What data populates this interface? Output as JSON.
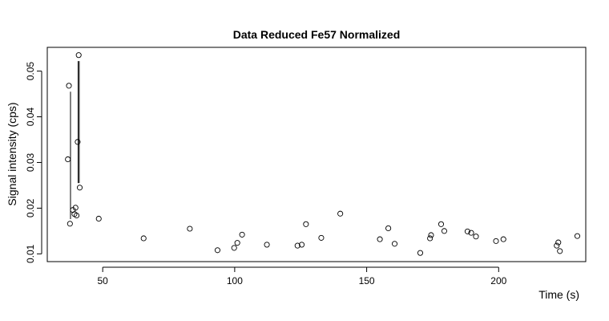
{
  "chart_data": {
    "type": "scatter",
    "title": "Data Reduced Fe57 Normalized",
    "xlabel": "Time (s)",
    "ylabel": "Signal intensity (cps)",
    "xlim": [
      29,
      233
    ],
    "ylim": [
      0.0083,
      0.0552
    ],
    "x_ticks": [
      50,
      100,
      150,
      200
    ],
    "x_tick_labels": [
      "50",
      "100",
      "150",
      "200"
    ],
    "y_ticks": [
      0.01,
      0.02,
      0.03,
      0.04,
      0.05
    ],
    "y_tick_labels": [
      "0.01",
      "0.02",
      "0.03",
      "0.04",
      "0.05"
    ],
    "grid": false,
    "points": [
      {
        "x": 36.8,
        "y": 0.0307
      },
      {
        "x": 37.2,
        "y": 0.0468
      },
      {
        "x": 37.6,
        "y": 0.0166
      },
      {
        "x": 38.7,
        "y": 0.0196
      },
      {
        "x": 39.3,
        "y": 0.0187
      },
      {
        "x": 39.7,
        "y": 0.0201
      },
      {
        "x": 40.1,
        "y": 0.0184
      },
      {
        "x": 40.5,
        "y": 0.0345
      },
      {
        "x": 40.9,
        "y": 0.0535
      },
      {
        "x": 41.3,
        "y": 0.0245
      },
      {
        "x": 48.5,
        "y": 0.0177
      },
      {
        "x": 65.5,
        "y": 0.0134
      },
      {
        "x": 83.0,
        "y": 0.0155
      },
      {
        "x": 93.5,
        "y": 0.0108
      },
      {
        "x": 99.8,
        "y": 0.0113
      },
      {
        "x": 101.0,
        "y": 0.0124
      },
      {
        "x": 102.8,
        "y": 0.0142
      },
      {
        "x": 112.2,
        "y": 0.012
      },
      {
        "x": 123.8,
        "y": 0.0118
      },
      {
        "x": 125.4,
        "y": 0.012
      },
      {
        "x": 127.0,
        "y": 0.0165
      },
      {
        "x": 132.8,
        "y": 0.0135
      },
      {
        "x": 140.0,
        "y": 0.0188
      },
      {
        "x": 155.0,
        "y": 0.0132
      },
      {
        "x": 158.2,
        "y": 0.0156
      },
      {
        "x": 160.6,
        "y": 0.0122
      },
      {
        "x": 170.3,
        "y": 0.0102
      },
      {
        "x": 174.0,
        "y": 0.0134
      },
      {
        "x": 174.4,
        "y": 0.0141
      },
      {
        "x": 178.2,
        "y": 0.0165
      },
      {
        "x": 179.4,
        "y": 0.015
      },
      {
        "x": 188.2,
        "y": 0.0149
      },
      {
        "x": 189.6,
        "y": 0.0146
      },
      {
        "x": 191.4,
        "y": 0.0138
      },
      {
        "x": 199.0,
        "y": 0.0128
      },
      {
        "x": 201.8,
        "y": 0.0132
      },
      {
        "x": 222.0,
        "y": 0.0118
      },
      {
        "x": 222.6,
        "y": 0.0125
      },
      {
        "x": 223.2,
        "y": 0.0106
      },
      {
        "x": 229.8,
        "y": 0.0139
      }
    ],
    "segments": [
      {
        "x": 37.8,
        "y1": 0.0176,
        "y2": 0.0455
      },
      {
        "x": 40.7,
        "y1": 0.0255,
        "y2": 0.0522
      },
      {
        "x": 41.1,
        "y1": 0.0255,
        "y2": 0.0522
      }
    ]
  }
}
